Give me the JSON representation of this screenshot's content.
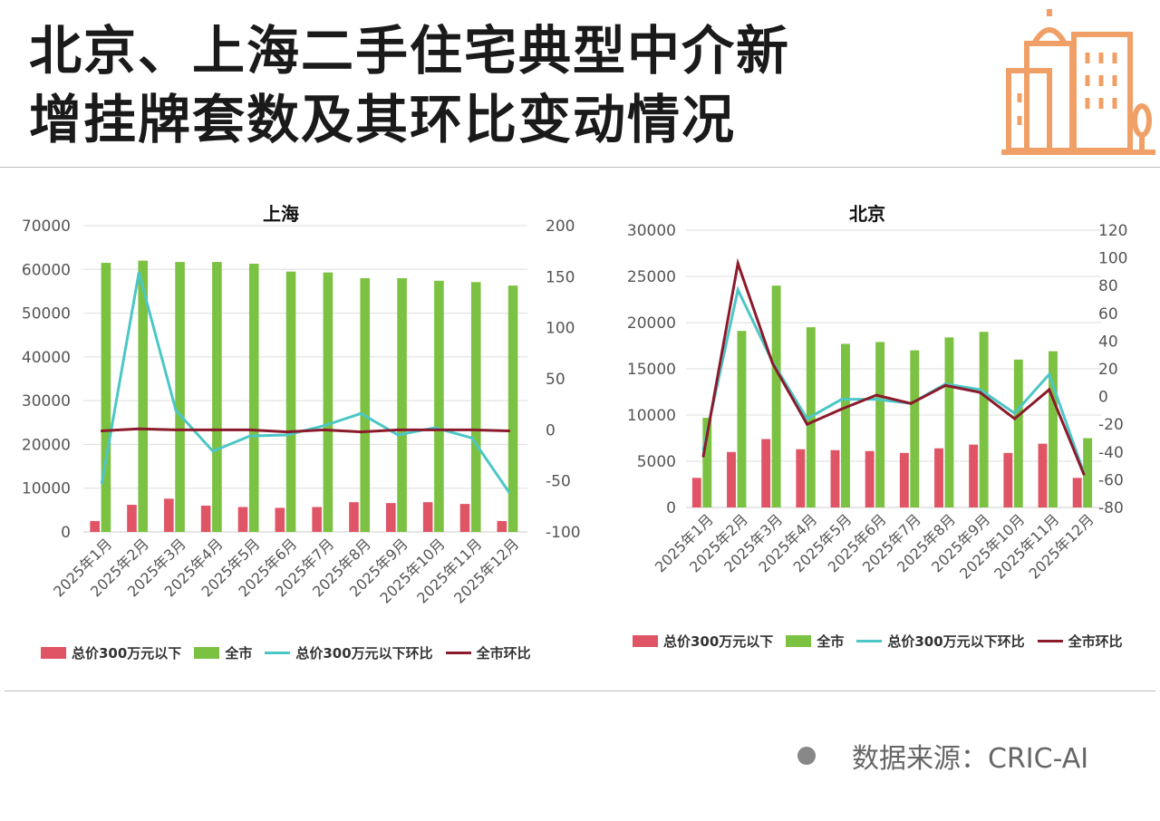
{
  "title_lines": [
    "北京、上海二手住宅典型中介新",
    "增挂牌套数及其环比变动情况"
  ],
  "source": "数据来源：CRIC-AI",
  "colors": {
    "under300": "#e05566",
    "all": "#7cc242",
    "under300_mom": "#4cc6c6",
    "all_mom": "#8b1a2b",
    "logo": "#f0a066"
  },
  "legend": [
    "总价300万元以下",
    "全市",
    "总价300万元以下环比",
    "全市环比"
  ],
  "chart_data": [
    {
      "type": "bar+line",
      "title": "上海",
      "categories": [
        "2025年1月",
        "2025年2月",
        "2025年3月",
        "2025年4月",
        "2025年5月",
        "2025年6月",
        "2025年7月",
        "2025年8月",
        "2025年9月",
        "2025年10月",
        "2025年11月",
        "2025年12月"
      ],
      "ylim": [
        0,
        70000
      ],
      "yticks": [
        0,
        10000,
        20000,
        30000,
        40000,
        50000,
        60000,
        70000
      ],
      "y2lim": [
        -100,
        200
      ],
      "y2ticks": [
        -100,
        -50,
        0,
        50,
        100,
        150,
        200
      ],
      "series": [
        {
          "name": "总价300万元以下",
          "type": "bar",
          "axis": "left",
          "values": [
            2500,
            6200,
            7600,
            6000,
            5700,
            5500,
            5700,
            6800,
            6600,
            6800,
            6400,
            2500
          ]
        },
        {
          "name": "全市",
          "type": "bar",
          "axis": "left",
          "values": [
            61500,
            62000,
            61700,
            61700,
            61300,
            59500,
            59300,
            58000,
            58000,
            57400,
            57100,
            56300
          ]
        },
        {
          "name": "总价300万元以下环比",
          "type": "line",
          "axis": "right",
          "values": [
            -52,
            154,
            19,
            -21,
            -6,
            -5,
            4,
            16,
            -5,
            2,
            -8,
            -61
          ]
        },
        {
          "name": "全市环比",
          "type": "line",
          "axis": "right",
          "values": [
            -1,
            1,
            0,
            0,
            0,
            -2,
            0,
            -2,
            0,
            0,
            0,
            -1
          ]
        }
      ],
      "grid": true,
      "legend": "bottom"
    },
    {
      "type": "bar+line",
      "title": "北京",
      "categories": [
        "2025年1月",
        "2025年2月",
        "2025年3月",
        "2025年4月",
        "2025年5月",
        "2025年6月",
        "2025年7月",
        "2025年8月",
        "2025年9月",
        "2025年10月",
        "2025年11月",
        "2025年12月"
      ],
      "ylim": [
        0,
        30000
      ],
      "yticks": [
        0,
        5000,
        10000,
        15000,
        20000,
        25000,
        30000
      ],
      "y2lim": [
        -80,
        120
      ],
      "y2ticks": [
        -80,
        -60,
        -40,
        -20,
        0,
        20,
        40,
        60,
        80,
        100,
        120
      ],
      "series": [
        {
          "name": "总价300万元以下",
          "type": "bar",
          "axis": "left",
          "values": [
            3200,
            6000,
            7400,
            6300,
            6200,
            6100,
            5900,
            6400,
            6800,
            5900,
            6900,
            3200
          ]
        },
        {
          "name": "全市",
          "type": "bar",
          "axis": "left",
          "values": [
            9700,
            19100,
            24000,
            19500,
            17700,
            17900,
            17000,
            18400,
            19000,
            16000,
            16900,
            7500
          ]
        },
        {
          "name": "总价300万元以下环比",
          "type": "line",
          "axis": "right",
          "values": [
            -38,
            77,
            25,
            -16,
            -2,
            -2,
            -5,
            9,
            5,
            -12,
            16,
            -55
          ]
        },
        {
          "name": "全市环比",
          "type": "line",
          "axis": "right",
          "values": [
            -43,
            96,
            24,
            -20,
            -9,
            1,
            -5,
            8,
            3,
            -16,
            5,
            -56
          ]
        }
      ],
      "grid": true,
      "legend": "bottom"
    }
  ]
}
